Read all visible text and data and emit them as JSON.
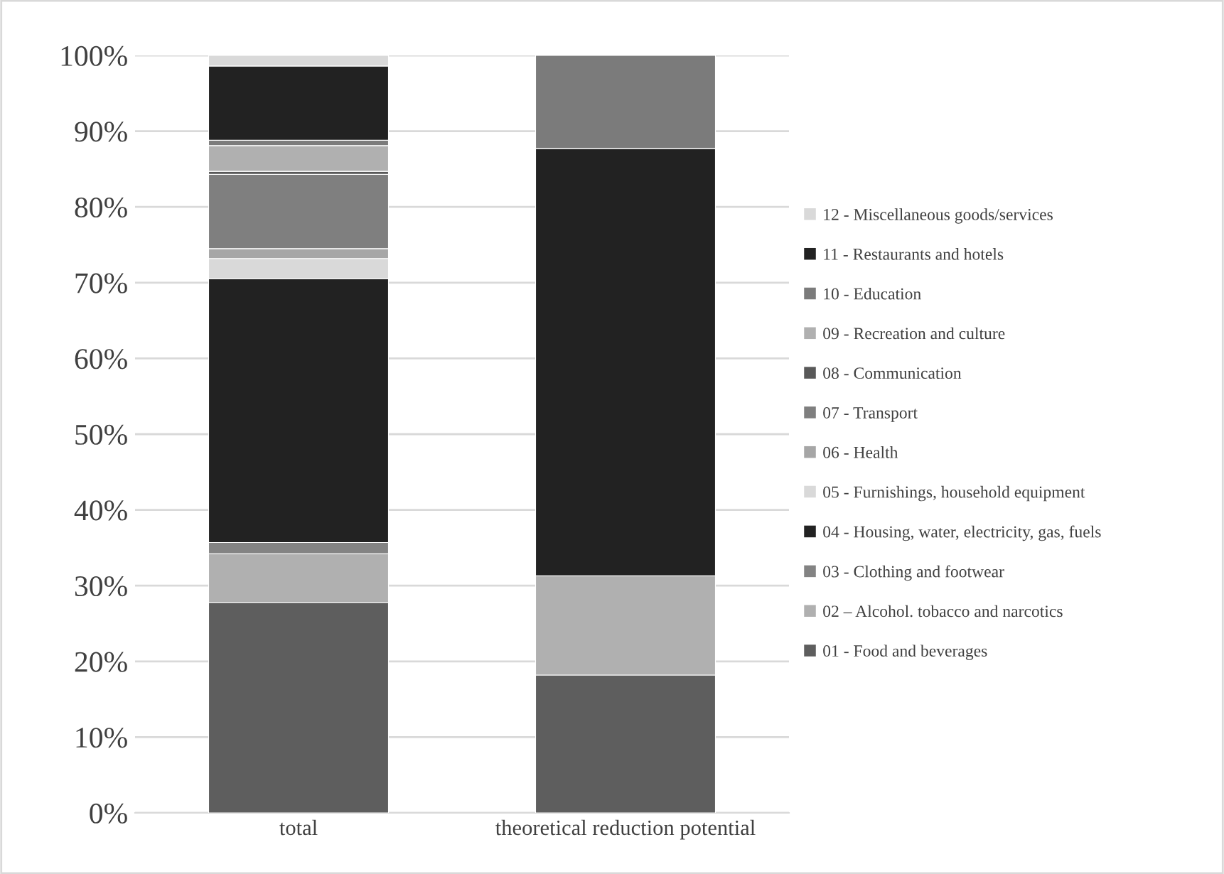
{
  "chart_data": {
    "type": "bar",
    "stacked": true,
    "categories": [
      "total",
      "theoretical reduction potential"
    ],
    "series": [
      {
        "name": "01 - Food and beverages",
        "color": "#5e5e5e",
        "values": [
          27.8,
          18.2
        ]
      },
      {
        "name": "02 – Alcohol. tobacco and narcotics",
        "color": "#b0b0b0",
        "values": [
          6.4,
          13.1
        ]
      },
      {
        "name": "03 - Clothing and footwear",
        "color": "#838383",
        "values": [
          1.5,
          0
        ]
      },
      {
        "name": "04 - Housing, water, electricity, gas, fuels",
        "color": "#222222",
        "values": [
          34.8,
          56.4
        ]
      },
      {
        "name": "05 - Furnishings, household equipment",
        "color": "#d9d9d9",
        "values": [
          2.7,
          0
        ]
      },
      {
        "name": "06 - Health",
        "color": "#a6a6a6",
        "values": [
          1.3,
          0
        ]
      },
      {
        "name": "07 - Transport",
        "color": "#7f7f7f",
        "values": [
          9.8,
          0
        ]
      },
      {
        "name": "08 - Communication",
        "color": "#595959",
        "values": [
          0.4,
          0
        ]
      },
      {
        "name": "09 - Recreation and culture",
        "color": "#b0b0b0",
        "values": [
          3.4,
          0
        ]
      },
      {
        "name": "10 - Education",
        "color": "#7b7b7b",
        "values": [
          0.7,
          12.3
        ]
      },
      {
        "name": "11 - Restaurants and hotels",
        "color": "#222222",
        "values": [
          9.8,
          0
        ]
      },
      {
        "name": "12 - Miscellaneous goods/services",
        "color": "#d9d9d9",
        "values": [
          1.4,
          0
        ]
      }
    ],
    "ylim": [
      0,
      100
    ],
    "yticks": [
      {
        "value": 0,
        "label": "0%"
      },
      {
        "value": 10,
        "label": "10%"
      },
      {
        "value": 20,
        "label": "20%"
      },
      {
        "value": 30,
        "label": "30%"
      },
      {
        "value": 40,
        "label": "40%"
      },
      {
        "value": 50,
        "label": "50%"
      },
      {
        "value": 60,
        "label": "60%"
      },
      {
        "value": 70,
        "label": "70%"
      },
      {
        "value": 80,
        "label": "80%"
      },
      {
        "value": 90,
        "label": "90%"
      },
      {
        "value": 100,
        "label": "100%"
      }
    ],
    "grid": "y",
    "legend": "right"
  }
}
